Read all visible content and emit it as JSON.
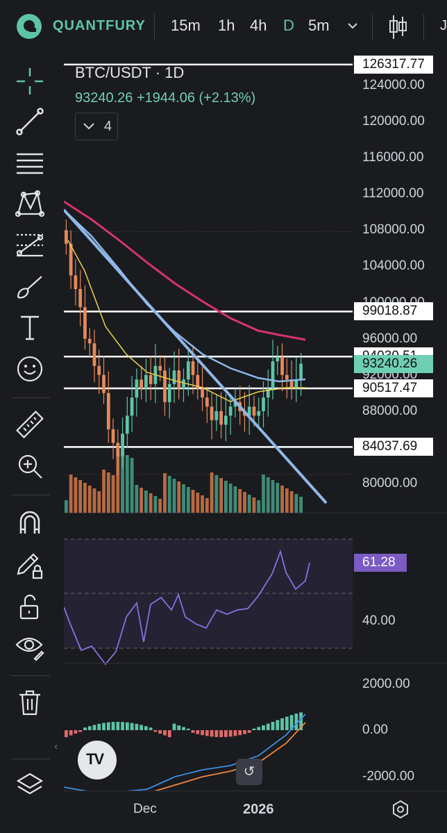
{
  "app": {
    "brand": "QUANTFURY"
  },
  "timeframes": [
    {
      "label": "15m",
      "active": false
    },
    {
      "label": "1h",
      "active": false
    },
    {
      "label": "4h",
      "active": false
    },
    {
      "label": "D",
      "active": true
    },
    {
      "label": "5m",
      "active": false
    }
  ],
  "header_cut_label": "J",
  "chart": {
    "symbol_title": "BTC/USDT · 1D",
    "ohlc_summary": "93240.26 +1944.06 (+2.13%)",
    "indicator_count": "4"
  },
  "price_axis": {
    "labels": [
      "124000.00",
      "120000.00",
      "116000.00",
      "112000.00",
      "108000.00",
      "104000.00",
      "100000.00",
      "96000.00",
      "92000.00",
      "88000.00",
      "80000.00"
    ],
    "tags": [
      {
        "value": "126317.77",
        "kind": "level"
      },
      {
        "value": "99018.87",
        "kind": "level"
      },
      {
        "value": "94030.51",
        "kind": "level"
      },
      {
        "value": "93240.26",
        "kind": "current"
      },
      {
        "value": "90517.47",
        "kind": "level"
      },
      {
        "value": "84037.69",
        "kind": "level"
      }
    ]
  },
  "rsi": {
    "value": "61.28",
    "label": "40.00"
  },
  "macd": {
    "labels": [
      "2000.00",
      "0.00",
      "-2000.00"
    ]
  },
  "time_axis": {
    "labels": [
      "Dec",
      "2026"
    ]
  },
  "colors": {
    "up": "#5fc4a7",
    "down": "#e58a5a",
    "ma_long": "#d6336c",
    "ma_mid": "#8fb8e8",
    "ma_short": "#e8d44d",
    "trend": "#8fb8e8",
    "rsi": "#8a6fe0",
    "macd": "#3d8fe0",
    "signal": "#f0883e",
    "accent": "#5fc4a7"
  },
  "chart_data": {
    "type": "candlestick",
    "title": "BTC/USDT · 1D",
    "y_range": [
      79000,
      126500
    ],
    "levels": [
      126317.77,
      99018.87,
      94030.51,
      90517.47,
      84037.69
    ],
    "last_price": 93240.26,
    "rsi_last": 61.28,
    "candles_close": [
      106500,
      103000,
      101500,
      99500,
      96000,
      95500,
      93000,
      92000,
      90000,
      86000,
      84500,
      83000,
      85500,
      87500,
      89500,
      91500,
      90500,
      92000,
      91000,
      93000,
      92500,
      89000,
      91000,
      92500,
      90500,
      91500,
      93500,
      92000,
      90500,
      89500,
      88500,
      87000,
      88000,
      86500,
      87500,
      88500,
      89000,
      88000,
      87500,
      88500,
      87500,
      88000,
      89500,
      90500,
      93500,
      94000,
      92000,
      91500,
      90500,
      91500,
      93240
    ]
  }
}
